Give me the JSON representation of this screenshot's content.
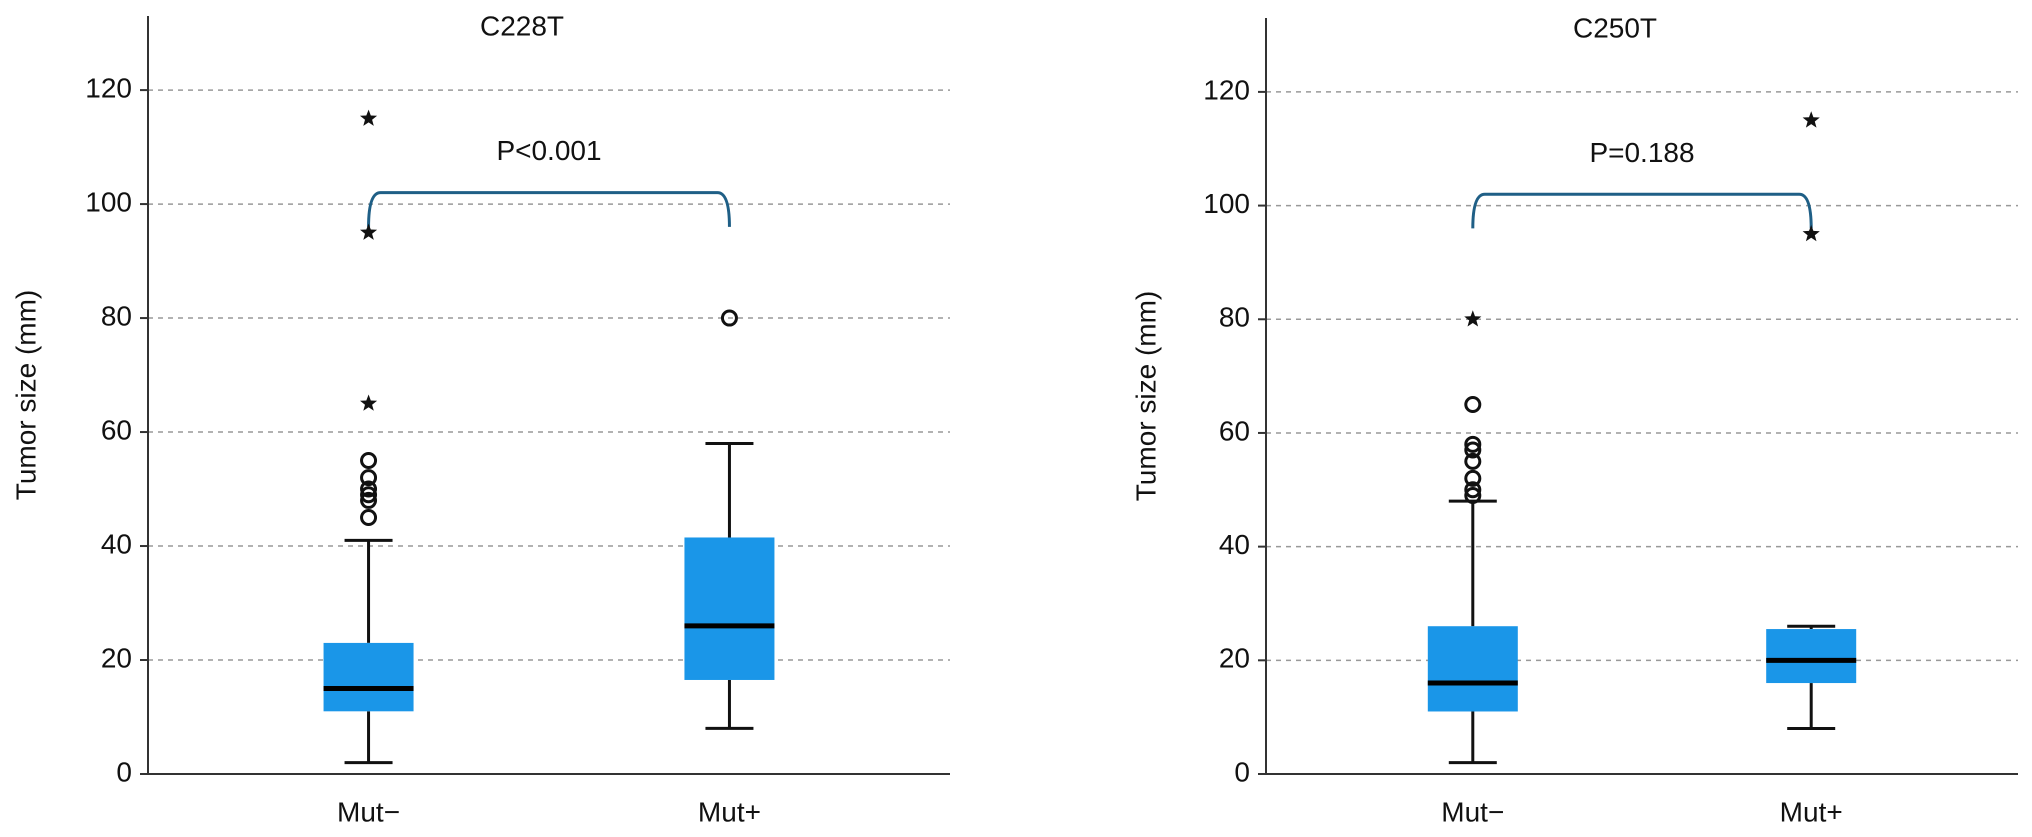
{
  "chart_data": [
    {
      "type": "box",
      "title": "C228T",
      "y_label": "Tumor size (mm)",
      "annotation": "P<0.001",
      "categories": [
        "Mut−",
        "Mut+"
      ],
      "color": "#1a96e8",
      "ylim": [
        0,
        133
      ],
      "yticks": [
        0,
        20,
        40,
        60,
        80,
        100,
        120
      ],
      "grid": true,
      "boxes": [
        {
          "whisker_low": 2,
          "q1": 11,
          "median": 15,
          "q3": 23,
          "whisker_high": 41,
          "outliers": [
            45,
            48,
            49,
            50,
            52,
            55
          ],
          "extremes": [
            65,
            95,
            115
          ]
        },
        {
          "whisker_low": 8,
          "q1": 16.5,
          "median": 26,
          "q3": 41.5,
          "whisker_high": 58,
          "outliers": [
            80
          ],
          "extremes": []
        }
      ]
    },
    {
      "type": "box",
      "title": "C250T",
      "y_label": "Tumor size (mm)",
      "annotation": "P=0.188",
      "categories": [
        "Mut−",
        "Mut+"
      ],
      "color": "#1a96e8",
      "ylim": [
        0,
        133
      ],
      "yticks": [
        0,
        20,
        40,
        60,
        80,
        100,
        120
      ],
      "grid": true,
      "boxes": [
        {
          "whisker_low": 2,
          "q1": 11,
          "median": 16,
          "q3": 26,
          "whisker_high": 48,
          "outliers": [
            49,
            50,
            52,
            55,
            57,
            58,
            65
          ],
          "extremes": [
            80
          ]
        },
        {
          "whisker_low": 8,
          "q1": 16,
          "median": 20,
          "q3": 25.5,
          "whisker_high": 26,
          "outliers": [],
          "extremes": [
            95,
            115
          ]
        }
      ]
    }
  ]
}
